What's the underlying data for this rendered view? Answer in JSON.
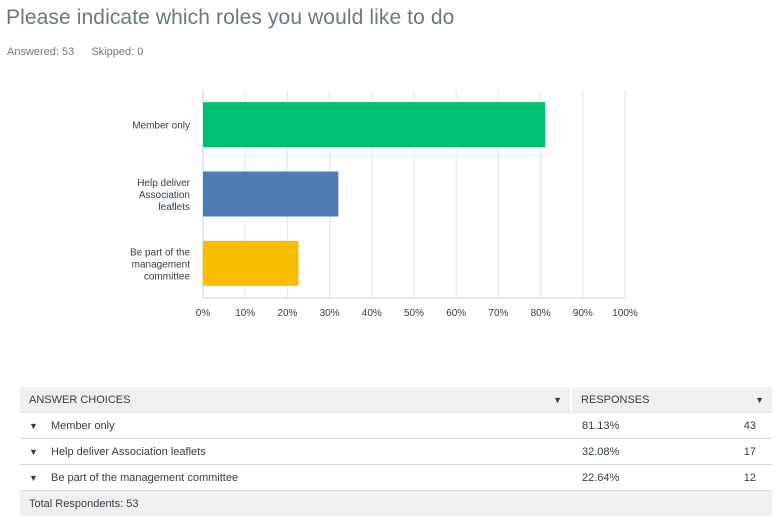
{
  "header": {
    "title": "Please indicate which roles you would like to do",
    "answered": "Answered: 53",
    "skipped": "Skipped: 0"
  },
  "colors": {
    "green": "#00bf6f",
    "blue": "#507cb6",
    "yellow": "#f9be00",
    "grid": "#e6e6e6"
  },
  "chart_data": {
    "type": "bar",
    "orientation": "horizontal",
    "categories": [
      [
        "Member only"
      ],
      [
        "Help deliver",
        "Association",
        "leaflets"
      ],
      [
        "Be part of the",
        "management",
        "committee"
      ]
    ],
    "values": [
      81.13,
      32.08,
      22.64
    ],
    "bar_colors": [
      "#00bf6f",
      "#507cb6",
      "#f9be00"
    ],
    "xlim": [
      0,
      100
    ],
    "x_ticks": [
      "0%",
      "10%",
      "20%",
      "30%",
      "40%",
      "50%",
      "60%",
      "70%",
      "80%",
      "90%",
      "100%"
    ],
    "grid": true
  },
  "table": {
    "headers": {
      "choices": "ANSWER CHOICES",
      "responses": "RESPONSES"
    },
    "rows": [
      {
        "choice": "Member only",
        "percent": "81.13%",
        "count": "43"
      },
      {
        "choice": "Help deliver Association leaflets",
        "percent": "32.08%",
        "count": "17"
      },
      {
        "choice": "Be part of the management committee",
        "percent": "22.64%",
        "count": "12"
      }
    ],
    "total": "Total Respondents: 53"
  }
}
